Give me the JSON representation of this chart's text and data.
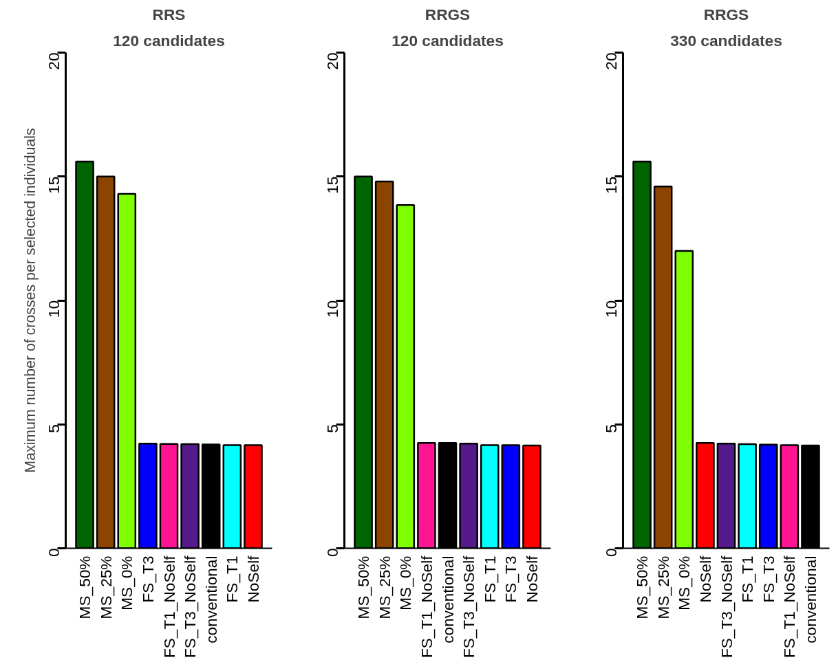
{
  "chart_data": [
    {
      "type": "bar",
      "title": "RRS",
      "subtitle": "120 candidates",
      "ylabel": "Maximum number of crosses per selected individuals",
      "categories": [
        "MS_50%",
        "MS_25%",
        "MS_0%",
        "FS_T3",
        "FS_T1_NoSelf",
        "FS_T3_NoSelf",
        "conventional",
        "FS_T1",
        "NoSelf"
      ],
      "values": [
        15.6,
        15.0,
        14.3,
        4.22,
        4.21,
        4.2,
        4.19,
        4.16,
        4.16
      ],
      "colors": [
        "#006400",
        "#8b4500",
        "#7fff00",
        "#0000ff",
        "#ff1493",
        "#551a8b",
        "#000000",
        "#00ffff",
        "#ff0000"
      ],
      "ylim": [
        0,
        20
      ],
      "yticks": [
        0,
        5,
        10,
        15,
        20
      ],
      "grid": false
    },
    {
      "type": "bar",
      "title": "RRGS",
      "subtitle": "120 candidates",
      "categories": [
        "MS_50%",
        "MS_25%",
        "MS_0%",
        "FS_T1_NoSelf",
        "conventional",
        "FS_T3_NoSelf",
        "FS_T1",
        "FS_T3",
        "NoSelf"
      ],
      "values": [
        15.0,
        14.8,
        13.85,
        4.25,
        4.25,
        4.22,
        4.16,
        4.16,
        4.15
      ],
      "colors": [
        "#006400",
        "#8b4500",
        "#7fff00",
        "#ff1493",
        "#000000",
        "#551a8b",
        "#00ffff",
        "#0000ff",
        "#ff0000"
      ],
      "ylim": [
        0,
        20
      ],
      "yticks": [
        0,
        5,
        10,
        15,
        20
      ],
      "grid": false
    },
    {
      "type": "bar",
      "title": "RRGS",
      "subtitle": "330 candidates",
      "categories": [
        "MS_50%",
        "MS_25%",
        "MS_0%",
        "NoSelf",
        "FS_T3_NoSelf",
        "FS_T1",
        "FS_T3",
        "FS_T1_NoSelf",
        "conventional"
      ],
      "values": [
        15.6,
        14.6,
        12.0,
        4.25,
        4.22,
        4.2,
        4.18,
        4.16,
        4.15
      ],
      "colors": [
        "#006400",
        "#8b4500",
        "#7fff00",
        "#ff0000",
        "#551a8b",
        "#00ffff",
        "#0000ff",
        "#ff1493",
        "#000000"
      ],
      "ylim": [
        0,
        20
      ],
      "yticks": [
        0,
        5,
        10,
        15,
        20
      ],
      "grid": false
    }
  ]
}
